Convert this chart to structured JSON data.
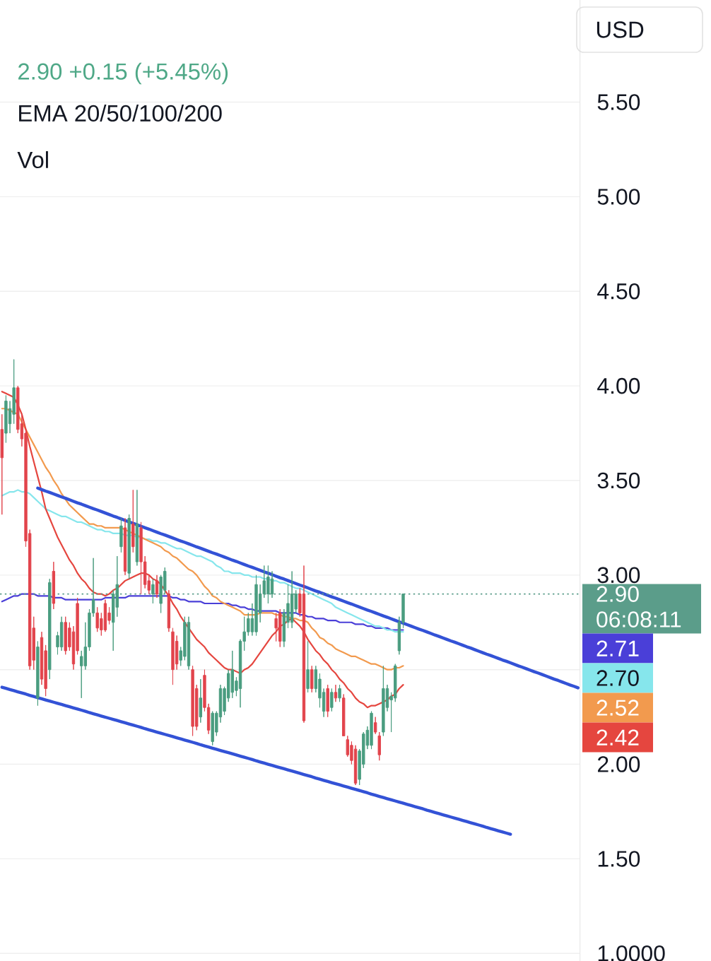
{
  "chart_data": {
    "type": "candlestick",
    "subtitle": "2.90 +0.15 (+5.45%)",
    "annotations": [
      "EMA 20/50/100/200",
      "Vol",
      "USD",
      "06:08:11",
      "2.71",
      "2.70",
      "2.52",
      "2.42"
    ],
    "categories": [
      null,
      null,
      null,
      null,
      null,
      null,
      null,
      null,
      null,
      null,
      null,
      null,
      null,
      null,
      null,
      null,
      null,
      null,
      null,
      null,
      null,
      null,
      null,
      null,
      null,
      null,
      null,
      null,
      null,
      null,
      null,
      null,
      null,
      null,
      null,
      null,
      null,
      null,
      null,
      null,
      null,
      null,
      null,
      null,
      null,
      null,
      null,
      null,
      null,
      null,
      null,
      null,
      null,
      null,
      null,
      null,
      null,
      null,
      null,
      null,
      null,
      null,
      null,
      null,
      null,
      null,
      null,
      null,
      null,
      null,
      null,
      null,
      null,
      null,
      null,
      null,
      null,
      null,
      null,
      null,
      null,
      null,
      null,
      null,
      null,
      null,
      null,
      null,
      null,
      null,
      null,
      null,
      null,
      null,
      null,
      null,
      null,
      null,
      null,
      null,
      null,
      null,
      null,
      null,
      null,
      null,
      null,
      null,
      null,
      null,
      null,
      null,
      null,
      null,
      null,
      null,
      null,
      null,
      null,
      null,
      null,
      null,
      null,
      null,
      null,
      null,
      null,
      null,
      null,
      null,
      null,
      null,
      null,
      null,
      null,
      null,
      null,
      null,
      null,
      null,
      null,
      null,
      null,
      null,
      null,
      null
    ],
    "ohlc": [
      [
        3.77,
        3.85,
        3.32,
        3.62
      ],
      [
        3.75,
        3.95,
        3.7,
        3.92
      ],
      [
        3.8,
        3.92,
        3.75,
        3.88
      ],
      [
        3.85,
        4.14,
        3.8,
        3.99
      ],
      [
        3.99,
        4.0,
        3.75,
        3.77
      ],
      [
        3.8,
        3.85,
        3.68,
        3.72
      ],
      [
        3.75,
        3.78,
        3.15,
        3.18
      ],
      [
        3.22,
        3.24,
        2.5,
        2.52
      ],
      [
        2.72,
        2.78,
        2.5,
        2.55
      ],
      [
        2.35,
        2.65,
        2.31,
        2.62
      ],
      [
        2.67,
        2.7,
        2.42,
        2.45
      ],
      [
        2.6,
        2.63,
        2.36,
        2.4
      ],
      [
        2.5,
        2.98,
        2.45,
        2.96
      ],
      [
        3.02,
        3.07,
        2.82,
        2.85
      ],
      [
        2.62,
        2.7,
        2.58,
        2.68
      ],
      [
        2.62,
        2.78,
        2.6,
        2.75
      ],
      [
        2.75,
        2.78,
        2.58,
        2.6
      ],
      [
        2.72,
        2.75,
        2.6,
        2.62
      ],
      [
        2.7,
        2.73,
        2.5,
        2.53
      ],
      [
        2.85,
        2.88,
        2.58,
        2.6
      ],
      [
        2.52,
        2.6,
        2.35,
        2.57
      ],
      [
        2.52,
        2.75,
        2.5,
        2.62
      ],
      [
        2.62,
        2.82,
        2.6,
        2.8
      ],
      [
        2.8,
        3.09,
        2.78,
        2.87
      ],
      [
        2.8,
        2.83,
        2.7,
        2.72
      ],
      [
        2.77,
        2.8,
        2.68,
        2.71
      ],
      [
        2.85,
        2.87,
        2.7,
        2.71
      ],
      [
        2.8,
        2.83,
        2.74,
        2.76
      ],
      [
        2.75,
        2.92,
        2.6,
        2.9
      ],
      [
        2.83,
        3.1,
        2.78,
        2.95
      ],
      [
        3.15,
        3.3,
        3.12,
        3.26
      ],
      [
        3.25,
        3.3,
        3.0,
        3.02
      ],
      [
        3.01,
        3.32,
        2.98,
        3.3
      ],
      [
        3.27,
        3.45,
        3.12,
        3.15
      ],
      [
        3.07,
        3.45,
        3.05,
        3.27
      ],
      [
        3.25,
        3.28,
        2.9,
        3.07
      ],
      [
        3.07,
        3.1,
        2.93,
        2.95
      ],
      [
        2.97,
        3.0,
        2.9,
        2.92
      ],
      [
        2.9,
        2.98,
        2.85,
        2.95
      ],
      [
        2.97,
        3.0,
        2.88,
        2.9
      ],
      [
        2.85,
        3.0,
        2.8,
        2.99
      ],
      [
        2.92,
        3.04,
        2.9,
        3.02
      ],
      [
        2.9,
        2.92,
        2.7,
        2.72
      ],
      [
        2.7,
        2.72,
        2.42,
        2.5
      ],
      [
        2.65,
        2.68,
        2.5,
        2.53
      ],
      [
        2.55,
        2.62,
        2.52,
        2.6
      ],
      [
        2.57,
        2.78,
        2.55,
        2.75
      ],
      [
        2.52,
        2.78,
        2.5,
        2.75
      ],
      [
        2.5,
        2.52,
        2.15,
        2.2
      ],
      [
        2.4,
        2.42,
        2.18,
        2.2
      ],
      [
        2.25,
        2.45,
        2.22,
        2.35
      ],
      [
        2.47,
        2.5,
        2.28,
        2.3
      ],
      [
        2.3,
        2.32,
        2.16,
        2.18
      ],
      [
        2.12,
        2.28,
        2.1,
        2.27
      ],
      [
        2.17,
        2.28,
        2.15,
        2.27
      ],
      [
        2.25,
        2.42,
        2.22,
        2.4
      ],
      [
        2.28,
        2.41,
        2.26,
        2.4
      ],
      [
        2.35,
        2.5,
        2.33,
        2.48
      ],
      [
        2.38,
        2.6,
        2.35,
        2.5
      ],
      [
        2.39,
        2.46,
        2.36,
        2.44
      ],
      [
        2.4,
        2.66,
        2.3,
        2.65
      ],
      [
        2.65,
        2.78,
        2.6,
        2.7
      ],
      [
        2.7,
        2.8,
        2.68,
        2.77
      ],
      [
        2.7,
        2.85,
        2.68,
        2.77
      ],
      [
        2.7,
        3.0,
        2.68,
        2.95
      ],
      [
        2.8,
        2.95,
        2.75,
        2.9
      ],
      [
        2.9,
        3.05,
        2.88,
        2.97
      ],
      [
        2.9,
        3.05,
        2.85,
        2.99
      ],
      [
        2.9,
        3.02,
        2.88,
        2.98
      ],
      [
        2.77,
        2.8,
        2.65,
        2.72
      ],
      [
        2.8,
        2.82,
        2.62,
        2.65
      ],
      [
        2.65,
        2.82,
        2.62,
        2.8
      ],
      [
        2.75,
        2.95,
        2.72,
        2.85
      ],
      [
        2.75,
        3.02,
        2.72,
        2.9
      ],
      [
        2.82,
        2.92,
        2.8,
        2.9
      ],
      [
        2.9,
        2.93,
        2.78,
        2.8
      ],
      [
        2.9,
        3.05,
        2.22,
        2.23
      ],
      [
        2.4,
        2.65,
        2.38,
        2.5
      ],
      [
        2.5,
        2.52,
        2.38,
        2.4
      ],
      [
        2.4,
        2.52,
        2.38,
        2.5
      ],
      [
        2.35,
        2.48,
        2.3,
        2.45
      ],
      [
        2.28,
        2.4,
        2.25,
        2.38
      ],
      [
        2.4,
        2.42,
        2.25,
        2.28
      ],
      [
        2.3,
        2.4,
        2.28,
        2.38
      ],
      [
        2.38,
        2.42,
        2.33,
        2.35
      ],
      [
        2.35,
        2.42,
        2.33,
        2.4
      ],
      [
        2.35,
        2.37,
        2.15,
        2.15
      ],
      [
        2.13,
        2.15,
        2.04,
        2.05
      ],
      [
        2.1,
        2.12,
        2.0,
        2.02
      ],
      [
        2.08,
        2.1,
        1.89,
        1.9
      ],
      [
        1.92,
        2.08,
        1.89,
        2.07
      ],
      [
        2.0,
        2.17,
        1.98,
        2.16
      ],
      [
        2.1,
        2.2,
        2.08,
        2.18
      ],
      [
        2.1,
        2.28,
        2.08,
        2.27
      ],
      [
        2.22,
        2.25,
        2.16,
        2.17
      ],
      [
        2.15,
        2.17,
        2.02,
        2.05
      ],
      [
        2.17,
        2.52,
        2.15,
        2.4
      ],
      [
        2.3,
        2.42,
        2.28,
        2.4
      ],
      [
        2.34,
        2.38,
        2.17,
        2.36
      ],
      [
        2.35,
        2.53,
        2.33,
        2.52
      ],
      [
        2.6,
        2.78,
        2.58,
        2.75
      ],
      [
        2.75,
        2.9,
        2.72,
        2.9
      ],
      null,
      null,
      null,
      null,
      null,
      null,
      null,
      null,
      null,
      null,
      null,
      null,
      null,
      null,
      null,
      null,
      null,
      null,
      null,
      null,
      null,
      null,
      null,
      null,
      null,
      null,
      null,
      null,
      null,
      null,
      null,
      null,
      null,
      null,
      null,
      null,
      null,
      null,
      null,
      null,
      null,
      null,
      null,
      null
    ],
    "colors": [
      "#e2444c",
      "#4a9d80",
      "#4a9d80",
      "#4a9d80",
      "#e2444c",
      "#e2444c",
      "#e2444c",
      "#e2444c",
      "#e2444c",
      "#4a9d80",
      "#e2444c",
      "#e2444c",
      "#4a9d80",
      "#e2444c",
      "#4a9d80",
      "#4a9d80",
      "#e2444c",
      "#e2444c",
      "#e2444c",
      "#e2444c",
      "#4a9d80",
      "#4a9d80",
      "#4a9d80",
      "#4a9d80",
      "#e2444c",
      "#e2444c",
      "#e2444c",
      "#e2444c",
      "#4a9d80",
      "#4a9d80",
      "#4a9d80",
      "#e2444c",
      "#4a9d80",
      "#e2444c",
      "#4a9d80",
      "#e2444c",
      "#e2444c",
      "#e2444c",
      "#4a9d80",
      "#e2444c",
      "#4a9d80",
      "#4a9d80",
      "#e2444c",
      "#e2444c",
      "#e2444c",
      "#4a9d80",
      "#4a9d80",
      "#4a9d80",
      "#e2444c",
      "#e2444c",
      "#4a9d80",
      "#e2444c",
      "#e2444c",
      "#4a9d80",
      "#4a9d80",
      "#4a9d80",
      "#4a9d80",
      "#4a9d80",
      "#4a9d80",
      "#4a9d80",
      "#4a9d80",
      "#4a9d80",
      "#4a9d80",
      "#4a9d80",
      "#4a9d80",
      "#4a9d80",
      "#4a9d80",
      "#4a9d80",
      "#4a9d80",
      "#e2444c",
      "#e2444c",
      "#4a9d80",
      "#4a9d80",
      "#4a9d80",
      "#4a9d80",
      "#e2444c",
      "#e2444c",
      "#4a9d80",
      "#e2444c",
      "#4a9d80",
      "#4a9d80",
      "#4a9d80",
      "#e2444c",
      "#4a9d80",
      "#e2444c",
      "#4a9d80",
      "#e2444c",
      "#e2444c",
      "#e2444c",
      "#e2444c",
      "#4a9d80",
      "#4a9d80",
      "#4a9d80",
      "#4a9d80",
      "#e2444c",
      "#e2444c",
      "#4a9d80",
      "#4a9d80",
      "#4a9d80",
      "#4a9d80",
      "#4a9d80",
      "#4a9d80",
      null,
      null,
      null,
      null,
      null,
      null,
      null,
      null,
      null,
      null,
      null,
      null,
      null,
      null,
      null,
      null,
      null,
      null,
      null,
      null,
      null,
      null,
      null,
      null,
      null,
      null,
      null,
      null,
      null,
      null,
      null,
      null,
      null,
      null,
      null,
      null,
      null,
      null,
      null,
      null,
      null,
      null,
      null,
      null
    ],
    "series": [
      {
        "type": "line",
        "color": "#4a3fd8",
        "values": [
          2.86,
          2.87,
          2.88,
          2.89,
          2.89,
          2.9,
          2.9,
          2.9,
          2.9,
          2.89,
          2.89,
          2.89,
          2.89,
          2.88,
          2.88,
          2.88,
          2.87,
          2.87,
          2.87,
          2.87,
          2.87,
          2.87,
          2.87,
          2.87,
          2.87,
          2.87,
          2.88,
          2.88,
          2.88,
          2.88,
          2.88,
          2.88,
          2.89,
          2.89,
          2.89,
          2.89,
          2.89,
          2.89,
          2.89,
          2.89,
          2.89,
          2.89,
          2.89,
          2.88,
          2.88,
          2.87,
          2.87,
          2.86,
          2.86,
          2.86,
          2.86,
          2.85,
          2.85,
          2.85,
          2.85,
          2.85,
          2.85,
          2.85,
          2.84,
          2.84,
          2.83,
          2.83,
          2.82,
          2.82,
          2.81,
          2.81,
          2.81,
          2.81,
          2.81,
          2.81,
          2.8,
          2.8,
          2.8,
          2.8,
          2.8,
          2.79,
          2.79,
          2.78,
          2.78,
          2.77,
          2.77,
          2.77,
          2.76,
          2.76,
          2.76,
          2.75,
          2.75,
          2.75,
          2.75,
          2.74,
          2.74,
          2.74,
          2.73,
          2.73,
          2.72,
          2.72,
          2.72,
          2.72,
          2.71,
          2.71,
          2.71,
          2.71,
          null,
          null,
          null,
          null,
          null,
          null,
          null,
          null,
          null,
          null,
          null,
          null,
          null,
          null,
          null,
          null,
          null,
          null,
          null,
          null,
          null,
          null,
          null,
          null,
          null,
          null,
          null,
          null,
          null,
          null,
          null,
          null,
          null,
          null,
          null,
          null,
          null,
          null,
          null,
          null,
          null,
          null,
          null,
          null
        ]
      },
      {
        "type": "line",
        "color": "#86e6ec",
        "values": [
          3.42,
          3.43,
          3.44,
          3.44,
          3.45,
          3.44,
          3.44,
          3.43,
          3.41,
          3.39,
          3.37,
          3.35,
          3.34,
          3.33,
          3.32,
          3.31,
          3.31,
          3.3,
          3.29,
          3.28,
          3.28,
          3.27,
          3.26,
          3.25,
          3.24,
          3.24,
          3.23,
          3.23,
          3.22,
          3.22,
          3.22,
          3.21,
          3.21,
          3.21,
          3.2,
          3.2,
          3.19,
          3.19,
          3.18,
          3.18,
          3.17,
          3.17,
          3.16,
          3.15,
          3.14,
          3.14,
          3.13,
          3.12,
          3.11,
          3.1,
          3.1,
          3.09,
          3.08,
          3.07,
          3.05,
          3.04,
          3.02,
          3.02,
          3.01,
          3.01,
          3.01,
          3.0,
          3.0,
          2.99,
          2.99,
          2.99,
          2.98,
          2.98,
          2.97,
          2.97,
          2.96,
          2.96,
          2.95,
          2.94,
          2.93,
          2.93,
          2.92,
          2.91,
          2.9,
          2.89,
          2.88,
          2.87,
          2.86,
          2.85,
          2.83,
          2.82,
          2.81,
          2.8,
          2.79,
          2.78,
          2.77,
          2.76,
          2.75,
          2.74,
          2.73,
          2.73,
          2.72,
          2.71,
          2.71,
          2.7,
          2.7,
          2.7,
          null,
          null,
          null,
          null,
          null,
          null,
          null,
          null,
          null,
          null,
          null,
          null,
          null,
          null,
          null,
          null,
          null,
          null,
          null,
          null,
          null,
          null,
          null,
          null,
          null,
          null,
          null,
          null,
          null,
          null,
          null,
          null,
          null,
          null,
          null,
          null,
          null,
          null,
          null,
          null,
          null,
          null,
          null,
          null
        ]
      },
      {
        "type": "line",
        "color": "#f29a4e",
        "values": [
          3.88,
          3.88,
          3.87,
          3.86,
          3.85,
          3.81,
          3.77,
          3.73,
          3.69,
          3.65,
          3.61,
          3.57,
          3.54,
          3.5,
          3.47,
          3.43,
          3.4,
          3.37,
          3.35,
          3.33,
          3.31,
          3.29,
          3.27,
          3.27,
          3.26,
          3.26,
          3.25,
          3.25,
          3.25,
          3.25,
          3.25,
          3.24,
          3.23,
          3.22,
          3.21,
          3.2,
          3.19,
          3.18,
          3.17,
          3.16,
          3.15,
          3.13,
          3.12,
          3.1,
          3.09,
          3.07,
          3.05,
          3.03,
          3.02,
          3.0,
          2.97,
          2.94,
          2.92,
          2.89,
          2.88,
          2.86,
          2.85,
          2.84,
          2.83,
          2.82,
          2.81,
          2.79,
          2.79,
          2.79,
          2.79,
          2.8,
          2.8,
          2.8,
          2.8,
          2.79,
          2.79,
          2.78,
          2.78,
          2.77,
          2.77,
          2.76,
          2.76,
          2.75,
          2.72,
          2.7,
          2.67,
          2.66,
          2.64,
          2.63,
          2.61,
          2.6,
          2.59,
          2.58,
          2.57,
          2.57,
          2.56,
          2.55,
          2.54,
          2.53,
          2.53,
          2.52,
          2.51,
          2.5,
          2.5,
          2.51,
          2.51,
          2.52,
          null,
          null,
          null,
          null,
          null,
          null,
          null,
          null,
          null,
          null,
          null,
          null,
          null,
          null,
          null,
          null,
          null,
          null,
          null,
          null,
          null,
          null,
          null,
          null,
          null,
          null,
          null,
          null,
          null,
          null,
          null,
          null,
          null,
          null,
          null,
          null,
          null,
          null,
          null,
          null,
          null,
          null,
          null,
          null
        ]
      },
      {
        "type": "line",
        "color": "#e5463f",
        "values": [
          3.97,
          3.96,
          3.95,
          3.94,
          3.9,
          3.85,
          3.77,
          3.68,
          3.6,
          3.52,
          3.44,
          3.35,
          3.3,
          3.25,
          3.2,
          3.16,
          3.12,
          3.08,
          3.05,
          3.01,
          2.98,
          2.96,
          2.93,
          2.91,
          2.9,
          2.9,
          2.89,
          2.9,
          2.92,
          2.93,
          2.95,
          2.97,
          2.98,
          2.99,
          3.0,
          3.01,
          3.01,
          3.0,
          2.98,
          2.97,
          2.95,
          2.92,
          2.89,
          2.85,
          2.82,
          2.78,
          2.75,
          2.72,
          2.69,
          2.66,
          2.64,
          2.62,
          2.59,
          2.57,
          2.55,
          2.53,
          2.51,
          2.5,
          2.5,
          2.49,
          2.48,
          2.5,
          2.51,
          2.53,
          2.56,
          2.59,
          2.62,
          2.65,
          2.68,
          2.7,
          2.73,
          2.74,
          2.76,
          2.77,
          2.75,
          2.73,
          2.7,
          2.66,
          2.63,
          2.6,
          2.58,
          2.55,
          2.53,
          2.5,
          2.48,
          2.45,
          2.43,
          2.4,
          2.38,
          2.35,
          2.33,
          2.32,
          2.3,
          2.31,
          2.31,
          2.32,
          2.33,
          2.34,
          2.36,
          2.37,
          2.4,
          2.42,
          null,
          null,
          null,
          null,
          null,
          null,
          null,
          null,
          null,
          null,
          null,
          null,
          null,
          null,
          null,
          null,
          null,
          null,
          null,
          null,
          null,
          null,
          null,
          null,
          null,
          null,
          null,
          null,
          null,
          null,
          null,
          null,
          null,
          null,
          null,
          null,
          null,
          null,
          null,
          null,
          null,
          null,
          null,
          null
        ]
      },
      {
        "type": "line",
        "color": "#3352d6",
        "values": [
          null,
          null,
          null,
          null,
          null,
          null,
          null,
          null,
          null,
          3.46,
          3.452,
          3.444,
          3.437,
          3.429,
          3.421,
          3.413,
          3.406,
          3.398,
          3.39,
          3.382,
          3.375,
          3.367,
          3.359,
          3.351,
          3.344,
          3.336,
          3.328,
          3.32,
          3.312,
          3.305,
          3.297,
          3.289,
          3.281,
          3.274,
          3.266,
          3.258,
          3.25,
          3.243,
          3.235,
          3.227,
          3.219,
          3.212,
          3.204,
          3.196,
          3.188,
          3.18,
          3.173,
          3.165,
          3.157,
          3.149,
          3.142,
          3.134,
          3.126,
          3.118,
          3.111,
          3.103,
          3.095,
          3.087,
          3.079,
          3.072,
          3.064,
          3.056,
          3.048,
          3.041,
          3.033,
          3.025,
          3.017,
          3.01,
          3.002,
          2.994,
          2.986,
          2.979,
          2.971,
          2.963,
          2.955,
          2.947,
          2.94,
          2.932,
          2.924,
          2.916,
          2.909,
          2.901,
          2.893,
          2.885,
          2.878,
          2.87,
          2.862,
          2.854,
          2.847,
          2.839,
          2.831,
          2.823,
          2.815,
          2.808,
          2.8,
          2.792,
          2.784,
          2.777,
          2.769,
          2.761,
          2.753,
          2.746,
          2.738,
          2.73,
          2.722,
          2.714,
          2.707,
          2.699,
          2.691,
          2.683,
          2.676,
          2.668,
          2.66,
          2.652,
          2.645,
          2.637,
          2.629,
          2.621,
          2.614,
          2.606,
          2.598,
          2.59,
          2.582,
          2.575,
          2.567,
          2.559,
          2.551,
          2.544,
          2.536,
          2.528,
          2.52,
          2.513,
          2.505,
          2.497,
          2.489,
          2.482,
          2.474,
          2.466,
          2.458,
          2.45,
          2.443,
          2.435,
          2.427,
          2.419,
          2.412,
          2.404
        ]
      },
      {
        "type": "line",
        "color": "#3352d6",
        "values": [
          2.407,
          2.401,
          2.395,
          2.389,
          2.383,
          2.377,
          2.371,
          2.364,
          2.358,
          2.352,
          2.346,
          2.34,
          2.334,
          2.328,
          2.322,
          2.316,
          2.31,
          2.304,
          2.298,
          2.292,
          2.286,
          2.28,
          2.273,
          2.267,
          2.261,
          2.255,
          2.249,
          2.243,
          2.237,
          2.231,
          2.225,
          2.219,
          2.213,
          2.207,
          2.201,
          2.195,
          2.188,
          2.182,
          2.176,
          2.17,
          2.164,
          2.158,
          2.152,
          2.146,
          2.14,
          2.134,
          2.128,
          2.122,
          2.116,
          2.11,
          2.103,
          2.097,
          2.091,
          2.085,
          2.079,
          2.073,
          2.067,
          2.061,
          2.055,
          2.049,
          2.043,
          2.037,
          2.031,
          2.025,
          2.018,
          2.012,
          2.006,
          2.0,
          1.994,
          1.988,
          1.982,
          1.976,
          1.97,
          1.964,
          1.958,
          1.952,
          1.946,
          1.94,
          1.934,
          1.927,
          1.921,
          1.915,
          1.909,
          1.903,
          1.897,
          1.891,
          1.885,
          1.879,
          1.873,
          1.867,
          1.861,
          1.855,
          1.849,
          1.842,
          1.836,
          1.83,
          1.824,
          1.818,
          1.812,
          1.806,
          1.8,
          1.794,
          1.788,
          1.782,
          1.776,
          1.77,
          1.764,
          1.757,
          1.751,
          1.745,
          1.739,
          1.733,
          1.727,
          1.721,
          1.715,
          1.709,
          1.703,
          1.697,
          1.691,
          1.685,
          1.679,
          1.673,
          1.666,
          1.66,
          1.654,
          1.648,
          1.642,
          1.636,
          1.63,
          null,
          null,
          null,
          null,
          null,
          null,
          null,
          null,
          null,
          null,
          null,
          null,
          null,
          null,
          null,
          null,
          null
        ]
      }
    ],
    "ylim": [
      0.96,
      6.04
    ],
    "yticks": [
      {
        "value": 1,
        "label": "1.0000"
      },
      {
        "value": 1.5,
        "label": "1.50"
      },
      {
        "value": 2,
        "label": "2.00"
      },
      {
        "value": 2.5,
        "label": null
      },
      {
        "value": 3,
        "label": "3.00"
      },
      {
        "value": 3.5,
        "label": "3.50"
      },
      {
        "value": 4,
        "label": "4.00"
      },
      {
        "value": 4.5,
        "label": "4.50"
      },
      {
        "value": 5,
        "label": "5.00"
      },
      {
        "value": 5.5,
        "label": "5.50"
      }
    ],
    "ref_lines": [
      {
        "axis": "y",
        "value": 2.9,
        "label": "2.90",
        "color": "#5b9d8a",
        "line_style": "dotted"
      }
    ],
    "grid": "y",
    "tick_labels": "y"
  }
}
